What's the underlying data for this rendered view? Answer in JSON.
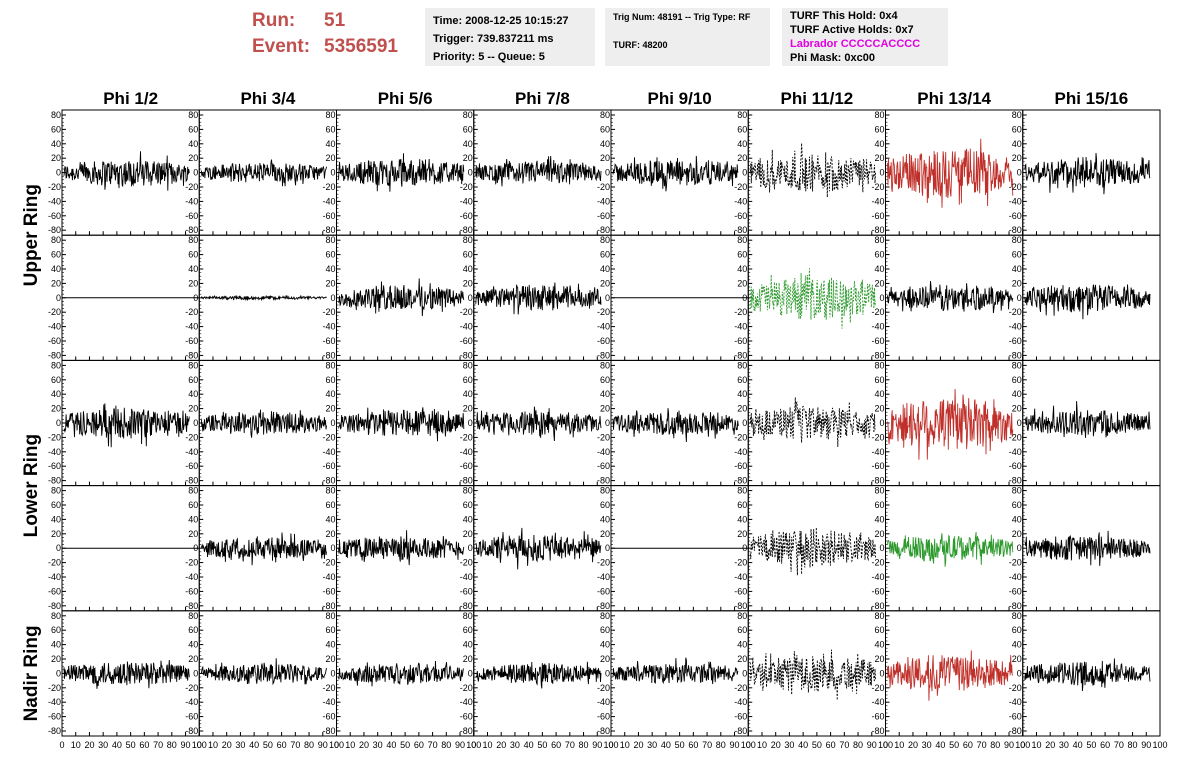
{
  "header": {
    "run_label": "Run:",
    "run_value": "51",
    "event_label": "Event:",
    "event_value": "5356591",
    "time": "Time: 2008-12-25 10:15:27",
    "trigger": "Trigger: 739.837211 ms",
    "priority": "Priority: 5 -- Queue: 5",
    "trig_num": "Trig Num: 48191 -- Trig Type: RF",
    "turf": "TURF: 48200",
    "turf_this_hold": "TURF This Hold: 0x4",
    "turf_active_holds": "TURF Active Holds: 0x7",
    "labrador": "Labrador CCCCCACCCC",
    "phi_mask": "Phi Mask: 0xc00"
  },
  "colors": {
    "header_red": "#c0504d",
    "labrador_magenta": "#e000e0",
    "panel_red": "#c0302a",
    "panel_green": "#2e9a2e",
    "trace_black": "#000000"
  },
  "chart_data": {
    "type": "line",
    "description_of_layout": "5 x 8 grid of waveform panels",
    "columns": [
      "Phi 1/2",
      "Phi 3/4",
      "Phi 5/6",
      "Phi 7/8",
      "Phi 9/10",
      "Phi 11/12",
      "Phi 13/14",
      "Phi 15/16"
    ],
    "row_groups": [
      {
        "label": "Upper Ring",
        "rows": [
          0,
          1
        ]
      },
      {
        "label": "Lower Ring",
        "rows": [
          2,
          3
        ]
      },
      {
        "label": "Nadir Ring",
        "rows": [
          4
        ]
      }
    ],
    "xlim": [
      0,
      100
    ],
    "ylim": [
      -80,
      80
    ],
    "y_ticks": [
      "80",
      "60",
      "40",
      "20",
      "0",
      "-20",
      "-40",
      "-60",
      "-80"
    ],
    "x_ticks": [
      "0",
      "10",
      "20",
      "30",
      "40",
      "50",
      "60",
      "70",
      "80",
      "90",
      "100"
    ],
    "panels": [
      [
        {
          "amp": 16,
          "style": "solid",
          "color": "black"
        },
        {
          "amp": 12,
          "style": "solid",
          "color": "black"
        },
        {
          "amp": 16,
          "style": "solid",
          "color": "black"
        },
        {
          "amp": 13,
          "style": "solid",
          "color": "black"
        },
        {
          "amp": 16,
          "style": "solid",
          "color": "black"
        },
        {
          "amp": 22,
          "style": "dashed",
          "color": "black"
        },
        {
          "amp": 30,
          "style": "solid",
          "color": "red"
        },
        {
          "amp": 18,
          "style": "solid",
          "color": "black"
        }
      ],
      [
        {
          "amp": 0,
          "style": "flat",
          "color": "black"
        },
        {
          "amp": 2,
          "style": "solid",
          "color": "black"
        },
        {
          "amp": 15,
          "style": "solid",
          "color": "black"
        },
        {
          "amp": 14,
          "style": "solid",
          "color": "black"
        },
        {
          "amp": 0,
          "style": "flat",
          "color": "black"
        },
        {
          "amp": 25,
          "style": "dashed",
          "color": "green"
        },
        {
          "amp": 15,
          "style": "solid",
          "color": "black"
        },
        {
          "amp": 17,
          "style": "solid",
          "color": "black"
        }
      ],
      [
        {
          "amp": 18,
          "style": "solid",
          "color": "black"
        },
        {
          "amp": 14,
          "style": "solid",
          "color": "black"
        },
        {
          "amp": 16,
          "style": "solid",
          "color": "black"
        },
        {
          "amp": 14,
          "style": "solid",
          "color": "black"
        },
        {
          "amp": 14,
          "style": "solid",
          "color": "black"
        },
        {
          "amp": 20,
          "style": "dashed",
          "color": "black"
        },
        {
          "amp": 32,
          "style": "solid",
          "color": "red"
        },
        {
          "amp": 15,
          "style": "solid",
          "color": "black"
        }
      ],
      [
        {
          "amp": 0,
          "style": "flat",
          "color": "black"
        },
        {
          "amp": 13,
          "style": "solid",
          "color": "black"
        },
        {
          "amp": 14,
          "style": "solid",
          "color": "black"
        },
        {
          "amp": 16,
          "style": "solid",
          "color": "black"
        },
        {
          "amp": 0,
          "style": "flat",
          "color": "black"
        },
        {
          "amp": 22,
          "style": "dashed",
          "color": "black"
        },
        {
          "amp": 15,
          "style": "solid",
          "color": "green"
        },
        {
          "amp": 15,
          "style": "solid",
          "color": "black"
        }
      ],
      [
        {
          "amp": 14,
          "style": "solid",
          "color": "black"
        },
        {
          "amp": 12,
          "style": "solid",
          "color": "black"
        },
        {
          "amp": 12,
          "style": "solid",
          "color": "black"
        },
        {
          "amp": 12,
          "style": "solid",
          "color": "black"
        },
        {
          "amp": 12,
          "style": "solid",
          "color": "black"
        },
        {
          "amp": 22,
          "style": "dashed",
          "color": "black"
        },
        {
          "amp": 22,
          "style": "solid",
          "color": "red"
        },
        {
          "amp": 14,
          "style": "solid",
          "color": "black"
        }
      ]
    ]
  }
}
